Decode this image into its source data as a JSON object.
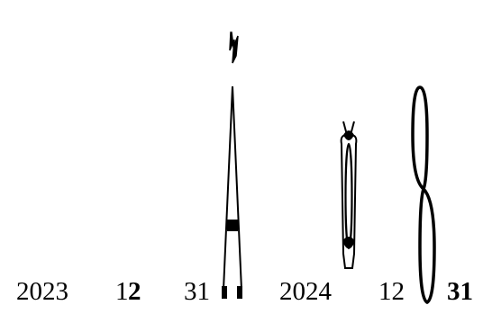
{
  "text": {
    "year1": "2023",
    "month1_a": "1",
    "month1_b": "2",
    "day1": "31",
    "year2": "2024",
    "month2": "12",
    "day2": "31"
  },
  "colors": {
    "background": "#ffffff",
    "ink": "#000000"
  },
  "glyphs": {
    "top_mark": "scribble",
    "tall_spike": "distorted-glyph",
    "loop_left": "distorted-glyph",
    "loop_right": "distorted-glyph"
  }
}
